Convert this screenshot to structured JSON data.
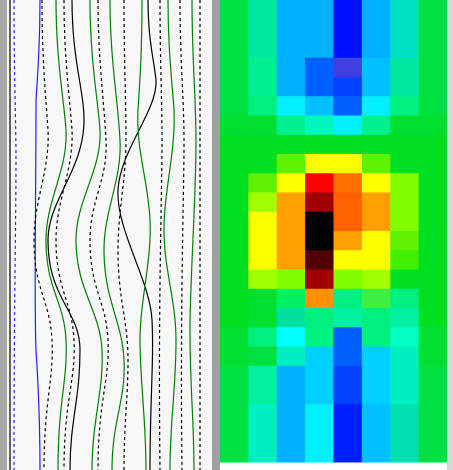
{
  "heatmap": {
    "rows": [
      [
        "#00e040",
        "#00e8a0",
        "#00b0ff",
        "#00b0ff",
        "#0010ff",
        "#00b0ff",
        "#00e0c0",
        "#00e040"
      ],
      [
        "#00e040",
        "#00e8a0",
        "#00b0ff",
        "#00b0ff",
        "#0010ff",
        "#00b0ff",
        "#00e0c0",
        "#00e040"
      ],
      [
        "#00e040",
        "#00e8a0",
        "#00b0ff",
        "#00b0ff",
        "#0010ff",
        "#00b0ff",
        "#00e0c0",
        "#00e040"
      ],
      [
        "#00e040",
        "#00f090",
        "#00b0ff",
        "#0060ff",
        "#4040e0",
        "#00c0ff",
        "#00e8a0",
        "#00e040"
      ],
      [
        "#00e040",
        "#00f090",
        "#00b0ff",
        "#0060ff",
        "#0040ff",
        "#00c0ff",
        "#00e8a0",
        "#00e040"
      ],
      [
        "#00e040",
        "#00f080",
        "#00f0ff",
        "#00c0ff",
        "#0060ff",
        "#00f0ff",
        "#00f080",
        "#00e040"
      ],
      [
        "#00e030",
        "#00e030",
        "#00f090",
        "#00f8c0",
        "#00f0ff",
        "#00f090",
        "#00e030",
        "#00e030"
      ],
      [
        "#00e020",
        "#00e020",
        "#00e020",
        "#00e020",
        "#00e020",
        "#00e020",
        "#00e020",
        "#00e020"
      ],
      [
        "#00e020",
        "#00e020",
        "#60f000",
        "#ffff00",
        "#ffff00",
        "#60f000",
        "#00e020",
        "#00e020"
      ],
      [
        "#00e020",
        "#60f000",
        "#ffff00",
        "#ff0000",
        "#ff7000",
        "#ffff00",
        "#80ff00",
        "#00e020"
      ],
      [
        "#00e020",
        "#a0ff00",
        "#ffa000",
        "#a00000",
        "#ff6000",
        "#ffa000",
        "#80ff00",
        "#00e020"
      ],
      [
        "#00e020",
        "#ffff00",
        "#ffa000",
        "#000000",
        "#ff6000",
        "#ffa000",
        "#80ff00",
        "#00e020"
      ],
      [
        "#00e020",
        "#ffff00",
        "#ffa000",
        "#000000",
        "#ffa000",
        "#ffff00",
        "#60f000",
        "#00e020"
      ],
      [
        "#00e020",
        "#ffff00",
        "#ffa000",
        "#500000",
        "#ffff00",
        "#ffff00",
        "#40f000",
        "#00e020"
      ],
      [
        "#00e020",
        "#a0ff00",
        "#80ff00",
        "#a00000",
        "#80ff00",
        "#a0ff00",
        "#00e020",
        "#00e020"
      ],
      [
        "#00e020",
        "#00e030",
        "#00f060",
        "#ff9000",
        "#00f080",
        "#40f040",
        "#00f080",
        "#00e020"
      ],
      [
        "#00e020",
        "#00e030",
        "#00e0a0",
        "#00f080",
        "#00f0a0",
        "#00f080",
        "#00f0a0",
        "#00e020"
      ],
      [
        "#00e030",
        "#00f080",
        "#00ffff",
        "#00f080",
        "#0060ff",
        "#00f080",
        "#00ffc0",
        "#00e030"
      ],
      [
        "#00e030",
        "#00e040",
        "#00f0c0",
        "#00d0ff",
        "#0060ff",
        "#00d0ff",
        "#00f0c0",
        "#00e030"
      ],
      [
        "#00e040",
        "#00f0a0",
        "#00b0ff",
        "#00d0ff",
        "#0040ff",
        "#00d0ff",
        "#00f0c0",
        "#00e040"
      ],
      [
        "#00e040",
        "#00f0a0",
        "#00b0ff",
        "#00d0ff",
        "#0040ff",
        "#00d0ff",
        "#00f0c0",
        "#00e040"
      ],
      [
        "#00e040",
        "#00f0c0",
        "#00b0ff",
        "#00f0ff",
        "#0020ff",
        "#00c0ff",
        "#00e0b0",
        "#00e040"
      ],
      [
        "#00e040",
        "#00f0c0",
        "#00b0ff",
        "#00f0ff",
        "#0020ff",
        "#00c0ff",
        "#00e0b0",
        "#00e040"
      ],
      [
        "#00e040",
        "#00f0c0",
        "#00b0ff",
        "#00f0ff",
        "#0020ff",
        "#00c0ff",
        "#00e0b0",
        "#00e040"
      ]
    ]
  }
}
